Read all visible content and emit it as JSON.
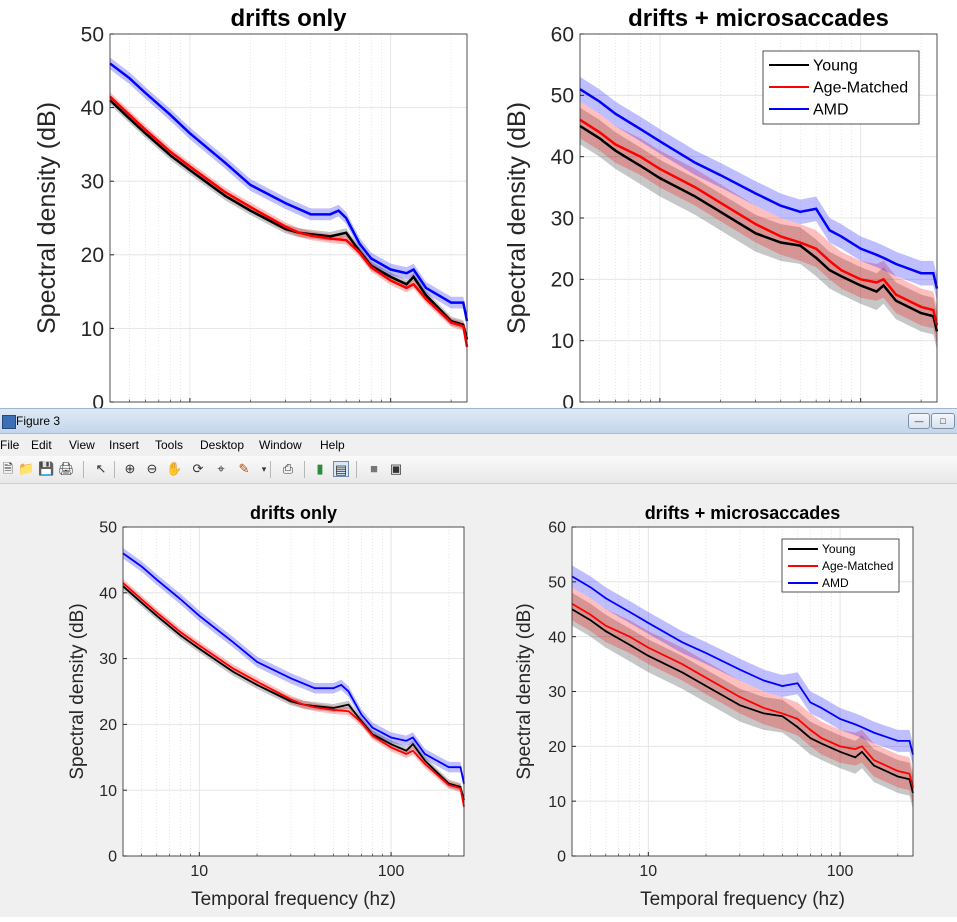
{
  "window": {
    "title": "Figure 3"
  },
  "menu": [
    "File",
    "Edit",
    "View",
    "Insert",
    "Tools",
    "Desktop",
    "Window",
    "Help"
  ],
  "toolbar": {
    "icons": [
      "new-file-icon",
      "open-folder-icon",
      "save-icon",
      "print-icon",
      "pointer-icon",
      "zoom-in-icon",
      "zoom-out-icon",
      "pan-icon",
      "rotate-icon",
      "data-cursor-icon",
      "brush-icon",
      "link-icon",
      "colorbar-icon",
      "legend-icon",
      "hide-plot-tools-icon",
      "show-plot-tools-icon"
    ]
  },
  "colors": {
    "young": "#000000",
    "age_matched": "#ff0000",
    "amd": "#0000ff"
  },
  "chart_data": [
    {
      "type": "line",
      "title": "drifts only",
      "xlabel": "Temporal frequency (hz)",
      "ylabel": "Spectral density (dB)",
      "xscale": "log",
      "xlim": [
        4,
        240
      ],
      "ylim": [
        0,
        50
      ],
      "yticks": [
        0,
        10,
        20,
        30,
        40,
        50
      ],
      "xticks": [
        10,
        100
      ],
      "grid": true,
      "legend": null,
      "series": [
        {
          "name": "Young",
          "x": [
            4,
            5,
            6,
            8,
            10,
            15,
            20,
            30,
            35,
            40,
            50,
            60,
            70,
            80,
            100,
            120,
            130,
            150,
            200,
            230,
            240
          ],
          "y": [
            41,
            38.5,
            36.5,
            33.5,
            31.5,
            28,
            26,
            23.5,
            23,
            22.8,
            22.5,
            23,
            20.5,
            18.5,
            17,
            16,
            17,
            14.5,
            11,
            10.5,
            8.5
          ],
          "band": 0.6
        },
        {
          "name": "Age-Matched",
          "x": [
            4,
            5,
            6,
            8,
            10,
            15,
            20,
            30,
            35,
            40,
            50,
            60,
            70,
            80,
            100,
            120,
            130,
            150,
            200,
            230,
            240
          ],
          "y": [
            41.5,
            39,
            37,
            34,
            32,
            28.5,
            26.5,
            23.8,
            23,
            22.6,
            22.2,
            22,
            20.3,
            18.3,
            16.5,
            15.5,
            16,
            14,
            10.8,
            10.3,
            7.5
          ],
          "band": 0.6
        },
        {
          "name": "AMD",
          "x": [
            4,
            5,
            6,
            8,
            10,
            15,
            20,
            30,
            40,
            50,
            55,
            60,
            70,
            80,
            100,
            120,
            130,
            150,
            200,
            230,
            240
          ],
          "y": [
            46,
            44,
            42,
            39,
            36.5,
            32.5,
            29.5,
            27,
            25.5,
            25.5,
            26,
            25,
            21.5,
            19.5,
            18,
            17.5,
            18,
            15.5,
            13.5,
            13.5,
            11
          ],
          "band": 0.8
        }
      ]
    },
    {
      "type": "line",
      "title": "drifts + microsaccades",
      "xlabel": "Temporal frequency (hz)",
      "ylabel": "Spectral density (dB)",
      "xscale": "log",
      "xlim": [
        4,
        240
      ],
      "ylim": [
        0,
        60
      ],
      "yticks": [
        0,
        10,
        20,
        30,
        40,
        50,
        60
      ],
      "xticks": [
        10,
        100
      ],
      "grid": true,
      "legend": "top-right",
      "series": [
        {
          "name": "Young",
          "x": [
            4,
            5,
            6,
            8,
            10,
            15,
            20,
            30,
            40,
            50,
            60,
            70,
            80,
            100,
            120,
            130,
            150,
            200,
            230,
            240
          ],
          "y": [
            45,
            43,
            41,
            38.5,
            36.5,
            33.5,
            31,
            27.5,
            26,
            25.5,
            23.5,
            21.5,
            20.5,
            19,
            18,
            19,
            16.5,
            14.5,
            14,
            11.5
          ],
          "band": 3
        },
        {
          "name": "Age-Matched",
          "x": [
            4,
            5,
            6,
            8,
            10,
            15,
            20,
            30,
            40,
            50,
            60,
            70,
            80,
            100,
            120,
            130,
            150,
            200,
            230,
            240
          ],
          "y": [
            46,
            44,
            42,
            40,
            38,
            35,
            32.5,
            29,
            27,
            26,
            25,
            23,
            21.5,
            20,
            19.5,
            20,
            17.5,
            15.5,
            15,
            12.5
          ],
          "band": 3
        },
        {
          "name": "AMD",
          "x": [
            4,
            5,
            6,
            8,
            10,
            15,
            20,
            30,
            40,
            50,
            60,
            70,
            80,
            100,
            120,
            130,
            150,
            200,
            230,
            240
          ],
          "y": [
            51,
            49,
            47,
            44.5,
            42.5,
            39,
            37,
            34,
            32,
            31,
            31.5,
            28,
            27,
            25,
            24,
            23.5,
            22.5,
            21,
            21,
            18.5
          ],
          "band": 2
        }
      ]
    }
  ]
}
